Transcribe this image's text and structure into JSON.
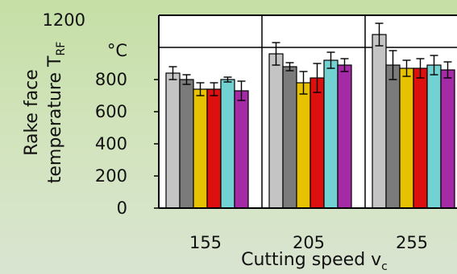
{
  "chart_data": {
    "type": "bar",
    "categories": [
      "155",
      "205",
      "255"
    ],
    "series": [
      {
        "values": [
          840,
          960,
          1080
        ],
        "errors": [
          40,
          70,
          70
        ],
        "color": "#c4c4c4"
      },
      {
        "values": [
          800,
          880,
          890
        ],
        "errors": [
          30,
          25,
          90
        ],
        "color": "#7b7b7b"
      },
      {
        "values": [
          740,
          780,
          870
        ],
        "errors": [
          40,
          70,
          50
        ],
        "color": "#e6c200"
      },
      {
        "values": [
          740,
          810,
          870
        ],
        "errors": [
          40,
          90,
          60
        ],
        "color": "#dd0f0f"
      },
      {
        "values": [
          800,
          920,
          890
        ],
        "errors": [
          15,
          50,
          60
        ],
        "color": "#72d1d1"
      },
      {
        "values": [
          730,
          890,
          860
        ],
        "errors": [
          60,
          40,
          50
        ],
        "color": "#a52aa5"
      }
    ],
    "xlabel": "Cutting speed v",
    "xlabel_sub": "c",
    "ylabel_line1": "Rake face",
    "ylabel_line2": "temperature T",
    "ylabel_sub": "RF",
    "yunit": "°C",
    "yticks": [
      0,
      200,
      400,
      600,
      800
    ],
    "ytop_label": "1200",
    "ylim": [
      0,
      1200
    ],
    "grid": true
  }
}
